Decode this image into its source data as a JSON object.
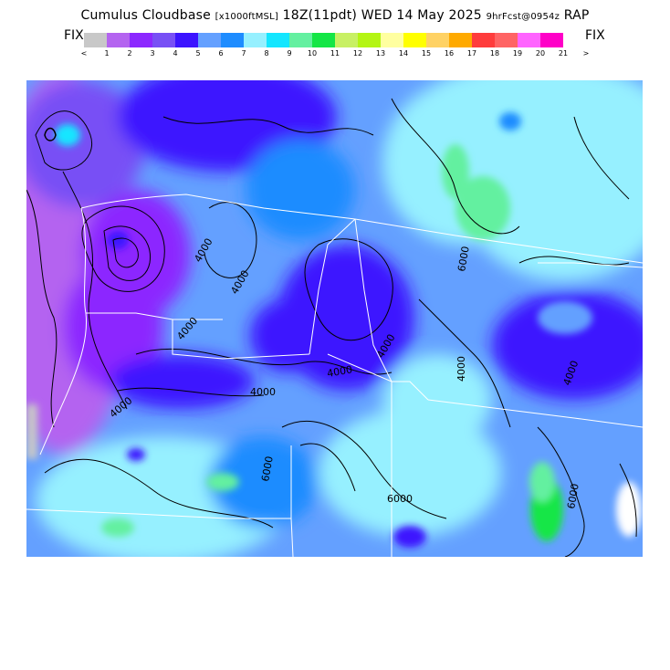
{
  "header": {
    "title_main": "Cumulus Cloudbase",
    "title_units": "[x1000ftMSL]",
    "title_valid": "18Z(11pdt) WED 14 May 2025",
    "title_run": "9hrFcst@0954z",
    "title_model": "RAP"
  },
  "legend": {
    "fix_left": "FIX",
    "fix_right": "FIX",
    "colors": [
      "#c8c8c8",
      "#b464f0",
      "#8c28ff",
      "#7850f5",
      "#3c14ff",
      "#64a0ff",
      "#1e8cff",
      "#96f0ff",
      "#14e6ff",
      "#64f0a0",
      "#14e646",
      "#c8f064",
      "#b4f514",
      "#ffffa0",
      "#ffff00",
      "#ffd264",
      "#ffaa00",
      "#ff3c3c",
      "#ff6464",
      "#ff64ff",
      "#ff00c8"
    ],
    "tick_labels": [
      "<",
      "1",
      "2",
      "3",
      "4",
      "5",
      "6",
      "7",
      "8",
      "9",
      "10",
      "11",
      "12",
      "13",
      "14",
      "15",
      "16",
      "17",
      "18",
      "19",
      "20",
      "21",
      ">"
    ]
  },
  "map": {
    "contour_labels": [
      "4000",
      "4000",
      "4000",
      "4000",
      "4000",
      "4000",
      "4000",
      "6000",
      "6000",
      "6000",
      "6000",
      "4000",
      "4000"
    ]
  }
}
